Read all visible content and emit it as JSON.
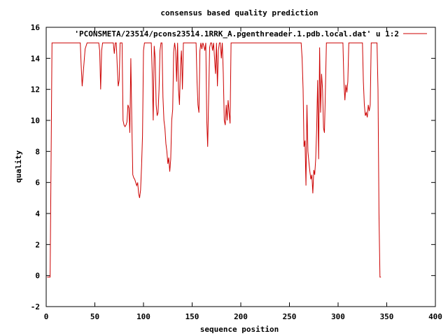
{
  "chart_data": {
    "type": "line",
    "title": "consensus based quality prediction",
    "xlabel": "sequence position",
    "ylabel": "quality",
    "xlim": [
      0,
      400
    ],
    "ylim": [
      -2,
      16
    ],
    "xticks": [
      0,
      50,
      100,
      150,
      200,
      250,
      300,
      350,
      400
    ],
    "yticks": [
      -2,
      0,
      2,
      4,
      6,
      8,
      10,
      12,
      14,
      16
    ],
    "grid": false,
    "legend_position": "top-right",
    "series": [
      {
        "name": "'PCONSMETA/23514/pcons23514.1RRK_A.pgenthreader.1.pdb.local.dat' u 1:2",
        "color": "#cc0000",
        "points": [
          [
            1,
            -0.1
          ],
          [
            2,
            -0.1
          ],
          [
            3,
            -0.1
          ],
          [
            4,
            -0.1
          ],
          [
            5,
            7.5
          ],
          [
            6,
            15
          ],
          [
            10,
            15
          ],
          [
            20,
            15
          ],
          [
            30,
            15
          ],
          [
            35,
            15
          ],
          [
            36,
            13.5
          ],
          [
            37,
            12.2
          ],
          [
            38,
            13
          ],
          [
            40,
            14.6
          ],
          [
            42,
            15
          ],
          [
            50,
            15
          ],
          [
            54,
            15
          ],
          [
            55,
            14.5
          ],
          [
            56,
            12
          ],
          [
            57,
            14.5
          ],
          [
            58,
            15
          ],
          [
            65,
            15
          ],
          [
            69,
            15
          ],
          [
            70,
            14.3
          ],
          [
            71,
            15
          ],
          [
            72,
            15
          ],
          [
            73,
            13.5
          ],
          [
            74,
            12.2
          ],
          [
            75,
            12.6
          ],
          [
            76,
            15
          ],
          [
            78,
            15
          ],
          [
            79,
            10
          ],
          [
            80,
            9.7
          ],
          [
            81,
            9.6
          ],
          [
            82,
            9.7
          ],
          [
            83,
            9.9
          ],
          [
            84,
            11
          ],
          [
            85,
            10.8
          ],
          [
            86,
            9.2
          ],
          [
            87,
            14
          ],
          [
            88,
            10
          ],
          [
            89,
            6.5
          ],
          [
            90,
            6.3
          ],
          [
            91,
            6.2
          ],
          [
            92,
            6
          ],
          [
            93,
            5.8
          ],
          [
            94,
            6
          ],
          [
            95,
            5.3
          ],
          [
            96,
            5
          ],
          [
            97,
            5.5
          ],
          [
            98,
            7
          ],
          [
            99,
            9
          ],
          [
            100,
            14.5
          ],
          [
            101,
            15
          ],
          [
            108,
            15
          ],
          [
            109,
            13
          ],
          [
            110,
            10
          ],
          [
            111,
            14.8
          ],
          [
            112,
            14
          ],
          [
            113,
            11
          ],
          [
            114,
            10.3
          ],
          [
            115,
            10.5
          ],
          [
            116,
            12
          ],
          [
            117,
            14.5
          ],
          [
            118,
            15
          ],
          [
            119,
            15
          ],
          [
            120,
            11.5
          ],
          [
            121,
            10
          ],
          [
            122,
            9.5
          ],
          [
            123,
            8.5
          ],
          [
            124,
            8
          ],
          [
            125,
            7.2
          ],
          [
            126,
            7.6
          ],
          [
            127,
            6.7
          ],
          [
            128,
            7.5
          ],
          [
            129,
            10
          ],
          [
            130,
            10.7
          ],
          [
            131,
            14.4
          ],
          [
            132,
            15
          ],
          [
            133,
            14.5
          ],
          [
            134,
            12.5
          ],
          [
            135,
            15
          ],
          [
            136,
            12
          ],
          [
            137,
            11
          ],
          [
            138,
            13.5
          ],
          [
            139,
            14.5
          ],
          [
            140,
            12
          ],
          [
            141,
            15
          ],
          [
            145,
            15
          ],
          [
            150,
            15
          ],
          [
            154,
            15
          ],
          [
            155,
            12.5
          ],
          [
            156,
            11
          ],
          [
            157,
            10.5
          ],
          [
            158,
            14.5
          ],
          [
            159,
            15
          ],
          [
            160,
            14.6
          ],
          [
            161,
            15
          ],
          [
            162,
            14.8
          ],
          [
            163,
            14.5
          ],
          [
            164,
            15
          ],
          [
            165,
            10
          ],
          [
            166,
            8.3
          ],
          [
            167,
            11.5
          ],
          [
            168,
            14.7
          ],
          [
            169,
            15
          ],
          [
            170,
            15
          ],
          [
            171,
            14.5
          ],
          [
            172,
            15
          ],
          [
            173,
            14
          ],
          [
            174,
            13
          ],
          [
            175,
            15
          ],
          [
            176,
            12.2
          ],
          [
            177,
            14.5
          ],
          [
            178,
            15
          ],
          [
            179,
            15
          ],
          [
            180,
            14
          ],
          [
            181,
            15
          ],
          [
            182,
            13
          ],
          [
            183,
            10
          ],
          [
            184,
            9.7
          ],
          [
            185,
            11
          ],
          [
            186,
            10
          ],
          [
            187,
            11.3
          ],
          [
            188,
            10.5
          ],
          [
            189,
            9.8
          ],
          [
            190,
            15
          ],
          [
            191,
            15
          ],
          [
            200,
            15
          ],
          [
            210,
            15
          ],
          [
            220,
            15
          ],
          [
            230,
            15
          ],
          [
            240,
            15
          ],
          [
            250,
            15
          ],
          [
            255,
            15
          ],
          [
            260,
            15
          ],
          [
            262,
            15
          ],
          [
            263,
            14
          ],
          [
            264,
            12
          ],
          [
            265,
            8.3
          ],
          [
            266,
            8.7
          ],
          [
            267,
            5.8
          ],
          [
            268,
            11
          ],
          [
            269,
            8
          ],
          [
            270,
            7.3
          ],
          [
            271,
            6.7
          ],
          [
            272,
            6.2
          ],
          [
            273,
            6.5
          ],
          [
            274,
            5.3
          ],
          [
            275,
            6.8
          ],
          [
            276,
            6.5
          ],
          [
            277,
            7.5
          ],
          [
            278,
            9.5
          ],
          [
            279,
            12.6
          ],
          [
            280,
            7.5
          ],
          [
            281,
            14.7
          ],
          [
            282,
            10.5
          ],
          [
            283,
            13
          ],
          [
            284,
            12
          ],
          [
            285,
            9.5
          ],
          [
            286,
            9.2
          ],
          [
            287,
            12
          ],
          [
            288,
            15
          ],
          [
            290,
            15
          ],
          [
            300,
            15
          ],
          [
            305,
            15
          ],
          [
            306,
            12.5
          ],
          [
            307,
            11.3
          ],
          [
            308,
            12.3
          ],
          [
            309,
            11.8
          ],
          [
            310,
            12.5
          ],
          [
            311,
            15
          ],
          [
            315,
            15
          ],
          [
            320,
            15
          ],
          [
            325,
            15
          ],
          [
            326,
            12.5
          ],
          [
            327,
            11
          ],
          [
            328,
            10.3
          ],
          [
            329,
            10.5
          ],
          [
            330,
            10.2
          ],
          [
            331,
            11
          ],
          [
            332,
            10.6
          ],
          [
            333,
            11
          ],
          [
            334,
            15
          ],
          [
            340,
            15
          ],
          [
            341,
            12
          ],
          [
            342,
            4
          ],
          [
            343,
            -0.1
          ],
          [
            344,
            -0.1
          ]
        ]
      }
    ]
  }
}
